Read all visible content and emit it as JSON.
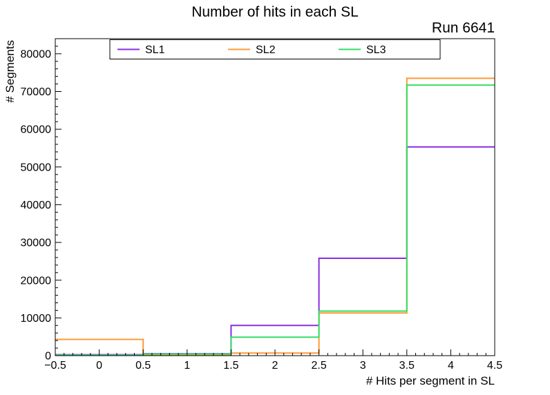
{
  "chart_data": {
    "type": "step-histogram",
    "title": "Number of hits in each SL",
    "annotation": "Run 6641",
    "xlabel": "# Hits per segment in SL",
    "ylabel": "# Segments",
    "xlim": [
      -0.5,
      4.5
    ],
    "ylim": [
      0,
      84000
    ],
    "bin_edges": [
      -0.5,
      0.5,
      1.5,
      2.5,
      3.5,
      4.5
    ],
    "xticks": {
      "values": [
        -0.5,
        0,
        0.5,
        1,
        1.5,
        2,
        2.5,
        3,
        3.5,
        4,
        4.5
      ],
      "labels": [
        "−0.5",
        "0",
        "0.5",
        "1",
        "1.5",
        "2",
        "2.5",
        "3",
        "3.5",
        "4",
        "4.5"
      ]
    },
    "yticks": {
      "values": [
        0,
        10000,
        20000,
        30000,
        40000,
        50000,
        60000,
        70000,
        80000
      ],
      "labels": [
        "0",
        "10000",
        "20000",
        "30000",
        "40000",
        "50000",
        "60000",
        "70000",
        "80000"
      ]
    },
    "series": [
      {
        "name": "SL1",
        "color": "#8a2be2",
        "values": [
          250,
          500,
          8000,
          25800,
          55300
        ]
      },
      {
        "name": "SL2",
        "color": "#ff9933",
        "values": [
          4300,
          250,
          700,
          11300,
          73500
        ]
      },
      {
        "name": "SL3",
        "color": "#32dd66",
        "values": [
          150,
          400,
          4900,
          11800,
          71700
        ]
      }
    ],
    "legend": {
      "position": "top",
      "entries": [
        "SL1",
        "SL2",
        "SL3"
      ]
    },
    "grid": false
  }
}
